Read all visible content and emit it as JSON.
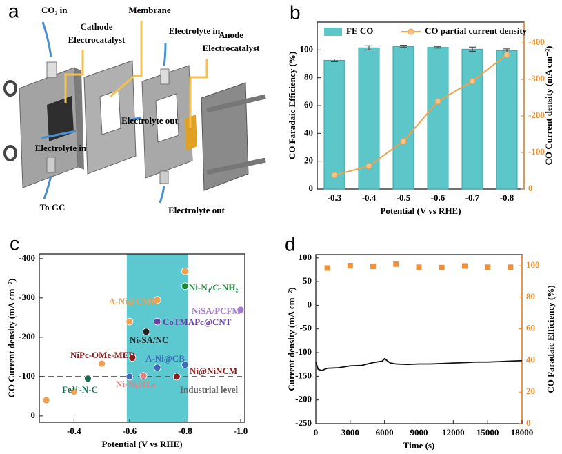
{
  "diagram": {
    "panel": "a",
    "labels": [
      {
        "lines": [
          "CO₂ in"
        ]
      },
      {
        "lines": [
          "Cathode",
          "Electrocatalyst"
        ]
      },
      {
        "lines": [
          "Membrane"
        ]
      },
      {
        "lines": [
          "Electrolyte in"
        ]
      },
      {
        "lines": [
          "Anode",
          "Electrocatalyst"
        ]
      },
      {
        "lines": [
          "Electrolyte out"
        ]
      },
      {
        "lines": [
          "Electrolyte in"
        ]
      },
      {
        "lines": [
          "To GC"
        ]
      },
      {
        "lines": [
          "Electrolyte out"
        ]
      }
    ]
  },
  "chart_data": [
    {
      "type": "bar",
      "panel": "b",
      "categories": [
        "-0.3",
        "-0.4",
        "-0.5",
        "-0.6",
        "-0.7",
        "-0.8"
      ],
      "series": [
        {
          "name": "FE CO",
          "color": "#5cc6c8",
          "values": [
            92.5,
            101.5,
            102.5,
            101.8,
            100.5,
            99.5
          ],
          "errors": [
            1,
            1.5,
            0.8,
            0.5,
            1.5,
            1.2
          ]
        },
        {
          "name": "CO partial current density",
          "color": "#f2a04a",
          "axis": "y2",
          "values": [
            -38,
            -63,
            -131,
            -240,
            -295,
            -368
          ]
        }
      ],
      "xlabel": "Potential (V vs RHE)",
      "ylabel": "CO Faradaic Efficiency (%)",
      "y2label": "CO Current density (mA cm⁻²)",
      "ylim": [
        0,
        120
      ],
      "yticks": [
        0,
        20,
        40,
        60,
        80,
        100
      ],
      "y2lim": [
        0,
        -457
      ],
      "y2ticks": [
        0,
        -100,
        -200,
        -300,
        -400
      ],
      "y2_color": "#f08c28",
      "legend": "top"
    },
    {
      "type": "scatter",
      "panel": "c",
      "xlabel": "Potential (V vs RHE)",
      "ylabel": "CO Current density (mA cm⁻²)",
      "xlim": [
        -0.275,
        -1.015
      ],
      "xticks": [
        -0.4,
        -0.6,
        -0.8,
        {
          "value": -1,
          "label": "-1.0"
        }
      ],
      "ylim": [
        16,
        -412
      ],
      "yticks": [
        0,
        -100,
        -200,
        -300,
        -400
      ],
      "highlight_x": [
        -0.59,
        -0.81
      ],
      "highlight_color": "#5cc8d0",
      "reference_line": -100,
      "reference_label": "Industrial level",
      "series": [
        {
          "name": "A-Ni@CMK",
          "color": "#f0a050",
          "x": [
            -0.3,
            -0.4,
            -0.5,
            -0.6,
            -0.7,
            -0.8
          ],
          "values": [
            -40,
            -62,
            -133,
            -240,
            -295,
            -368
          ]
        },
        {
          "name": "Ni-N₄/C-NH₂",
          "color": "#1f8a3c",
          "x": [
            -0.8
          ],
          "values": [
            -330
          ]
        },
        {
          "name": "NiSA/PCFM",
          "color": "#a27ad0",
          "x": [
            -1.0
          ],
          "values": [
            -270
          ]
        },
        {
          "name": "CoTMAPc@CNT",
          "color": "#6a3fa6",
          "x": [
            -0.7
          ],
          "values": [
            -240
          ]
        },
        {
          "name": "Ni-SA/NC",
          "color": "#222222",
          "x": [
            -0.66
          ],
          "values": [
            -214
          ]
        },
        {
          "name": "NiPc-OMe-MED",
          "color": "#8b1e1e",
          "x": [
            -0.61
          ],
          "values": [
            -148
          ]
        },
        {
          "name": "A-Ni@CB",
          "color": "#3a6ab8",
          "x": [
            -0.6,
            -0.7,
            -0.8
          ],
          "values": [
            -100,
            -123,
            -130
          ]
        },
        {
          "name": "Ni@NiNCM",
          "color": "#8b1e1e",
          "x": [
            -0.77
          ],
          "values": [
            -100
          ]
        },
        {
          "name": "Fe³⁺-N-C",
          "color": "#1d6b55",
          "x": [
            -0.45
          ],
          "values": [
            -95
          ]
        },
        {
          "name": "Ni-N@ILs",
          "color": "#e58080",
          "x": [
            -0.65
          ],
          "values": [
            -102
          ]
        }
      ]
    },
    {
      "type": "line",
      "panel": "d",
      "xlabel": "Time (s)",
      "ylabel": "Current density (mA cm⁻²)",
      "y2label": "CO Faradaic Efficiency (%)",
      "xlim": [
        0,
        18000
      ],
      "xticks": [
        0,
        3000,
        6000,
        9000,
        12000,
        15000,
        18000
      ],
      "ylim": [
        -250,
        107
      ],
      "yticks": [
        -250,
        -200,
        -150,
        -100,
        -50,
        0,
        50,
        100
      ],
      "y2lim": [
        0,
        107
      ],
      "y2ticks": [
        0,
        20,
        40,
        60,
        80,
        100
      ],
      "y2_color": "#f08c28",
      "series": [
        {
          "color": "#111111",
          "mode": "line",
          "x": [
            0,
            200,
            500,
            1000,
            2000,
            3000,
            4000,
            5000,
            5800,
            6000,
            6500,
            7000,
            8000,
            9000,
            10000,
            11000,
            12000,
            13000,
            14000,
            15000,
            16000,
            17000,
            18000
          ],
          "values": [
            -120,
            -135,
            -138,
            -133,
            -132,
            -128,
            -127,
            -121,
            -118,
            -113,
            -122,
            -124,
            -125,
            -124,
            -124,
            -123,
            -122,
            -121,
            -120,
            -120,
            -119,
            -118,
            -117
          ]
        },
        {
          "color": "#f0903a",
          "mode": "markers",
          "axis": "y2",
          "x": [
            1000,
            3000,
            5000,
            7000,
            9000,
            11000,
            13000,
            15000,
            17000
          ],
          "values": [
            98.5,
            100,
            99.5,
            101,
            99,
            98.8,
            99.8,
            99,
            99
          ]
        }
      ]
    }
  ]
}
